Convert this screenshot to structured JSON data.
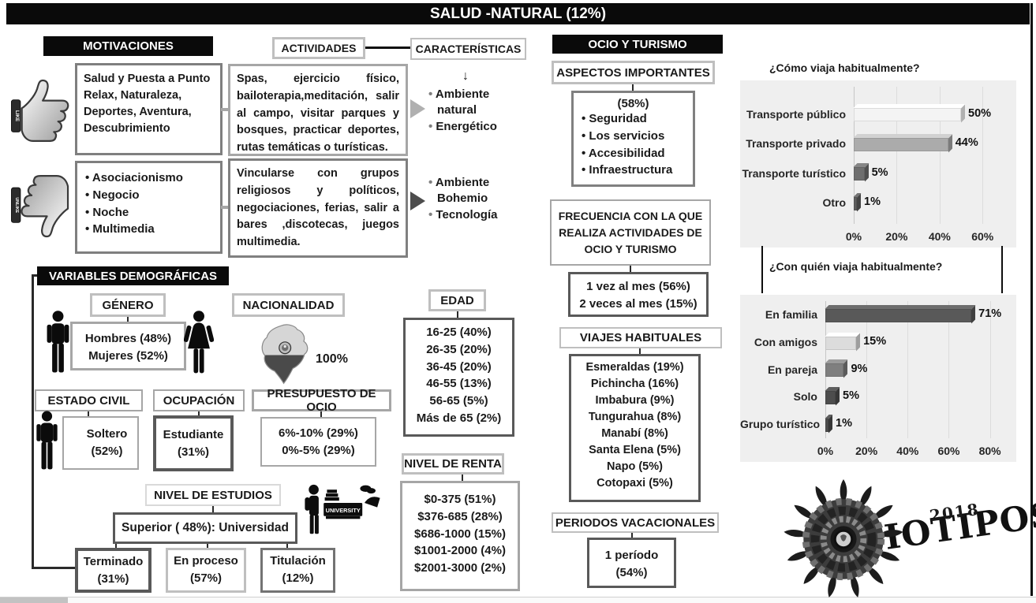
{
  "title": "SALUD -NATURAL (12%)",
  "motivaciones": {
    "header": "MOTIVACIONES",
    "like_badge": "LIKE",
    "dislike_badge": "UNLIKE",
    "like_text": "Salud y Puesta a Punto Relax, Naturaleza, Deportes, Aventura, Descubrimiento",
    "dislike_items": [
      "Asociacionismo",
      "Negocio",
      "Noche",
      "Multimedia"
    ]
  },
  "actividades": {
    "header": "ACTIVIDADES",
    "grupo1": "Spas, ejercicio físico, bailoterapia,meditación, salir al campo, visitar parques y bosques, practicar deportes, rutas temáticas o turísticas.",
    "grupo2": "Vincularse con grupos religiosos y políticos, negociaciones, ferias, salir a bares ,discotecas, juegos multimedia."
  },
  "caracteristicas": {
    "header": "CARACTERÍSTICAS",
    "flecha": "↓",
    "grupo1": [
      "Ambiente natural",
      "Energético"
    ],
    "grupo2": [
      "Ambiente Bohemio",
      "Tecnología"
    ]
  },
  "ocio_turismo": {
    "header": "OCIO Y TURISMO",
    "aspectos": {
      "header": "ASPECTOS IMPORTANTES",
      "destacado": "(58%)",
      "items": [
        "Seguridad",
        "Los servicios",
        "Accesibilidad",
        "Infraestructura"
      ]
    },
    "frecuencia": {
      "header": "FRECUENCIA CON LA QUE REALIZA ACTIVIDADES DE OCIO Y TURISMO",
      "lines": [
        "1 vez al mes (56%)",
        "2 veces al mes (15%)"
      ]
    },
    "viajes_habituales": {
      "header": "VIAJES HABITUALES",
      "lines": [
        "Esmeraldas (19%)",
        "Pichincha (16%)",
        "Imbabura (9%)",
        "Tungurahua (8%)",
        "Manabí (8%)",
        "Santa Elena (5%)",
        "Napo (5%)",
        "Cotopaxi (5%)"
      ]
    },
    "periodos": {
      "header": "PERIODOS VACACIONALES",
      "lines": [
        "1 período",
        "(54%)"
      ]
    }
  },
  "demograficas": {
    "header": "VARIABLES DEMOGRÁFICAS",
    "genero": {
      "header": "GÉNERO",
      "lines": [
        "Hombres (48%)",
        "Mujeres (52%)"
      ]
    },
    "nacionalidad": {
      "header": "NACIONALIDAD",
      "value": "100%"
    },
    "edad": {
      "header": "EDAD",
      "lines": [
        "16-25 (40%)",
        "26-35 (20%)",
        "36-45 (20%)",
        "46-55 (13%)",
        "56-65 (5%)",
        "Más de 65 (2%)"
      ]
    },
    "estado_civil": {
      "header": "ESTADO CIVIL",
      "lines": [
        "Soltero",
        "(52%)"
      ]
    },
    "ocupacion": {
      "header": "OCUPACIÓN",
      "lines": [
        "Estudiante",
        "(31%)"
      ]
    },
    "presupuesto": {
      "header": "PRESUPUESTO DE OCIO",
      "lines": [
        "6%-10%  (29%)",
        "0%-5% (29%)"
      ]
    },
    "renta": {
      "header": "NIVEL DE RENTA",
      "lines": [
        "$0-375 (51%)",
        "$376-685  (28%)",
        "$686-1000 (15%)",
        "$1001-2000 (4%)",
        "$2001-3000 (2%)"
      ]
    },
    "estudios": {
      "header": "NIVEL DE ESTUDIOS",
      "superior": "Superior ( 48%): Universidad",
      "university_sign": "UNIVERSITY",
      "sub": [
        {
          "lines": [
            "Terminado",
            "(31%)"
          ]
        },
        {
          "lines": [
            "En proceso",
            "(57%)"
          ]
        },
        {
          "lines": [
            "Titulación",
            "(12%)"
          ]
        }
      ]
    }
  },
  "chart_data": [
    {
      "type": "bar",
      "orientation": "horizontal",
      "title": "¿Cómo viaja habitualmente?",
      "categories": [
        "Transporte público",
        "Transporte privado",
        "Transporte turístico",
        "Otro"
      ],
      "values": [
        50,
        44,
        5,
        1
      ],
      "data_labels": [
        "50%",
        "44%",
        "5%",
        "1%"
      ],
      "bar_colors": [
        "#f4f4f4",
        "#ababab",
        "#6e6e6e",
        "#5f5f5f"
      ],
      "xticks": [
        0,
        20,
        40,
        60
      ],
      "xlim": [
        0,
        73.5
      ],
      "grid": true,
      "legend": "none",
      "plot_bg": "#efefef"
    },
    {
      "type": "bar",
      "orientation": "horizontal",
      "title": "¿Con quién viaja habitualmente?",
      "categories": [
        "En familia",
        "Con amigos",
        "En pareja",
        "Solo",
        "Grupo turístico"
      ],
      "values": [
        71,
        15,
        9,
        5,
        1
      ],
      "data_labels": [
        "71%",
        "15%",
        "9%",
        "5%",
        "1%"
      ],
      "bar_colors": [
        "#595959",
        "#dcdcdc",
        "#7f7f7f",
        "#4d4d4d",
        "#4d4d4d"
      ],
      "xticks": [
        0,
        20,
        40,
        60,
        80
      ],
      "xlim": [
        0,
        90.5
      ],
      "grid": true,
      "legend": "none",
      "plot_bg": "#efefef"
    }
  ],
  "logo": {
    "text": "OCIOTIPOS",
    "year": "2018"
  },
  "colors": {
    "header_bg": "#0a0a0a",
    "border_light": "#bfbfbf",
    "border_mid": "#a6a6a6",
    "border_dark": "#595959",
    "chart_bg": "#efefef"
  }
}
